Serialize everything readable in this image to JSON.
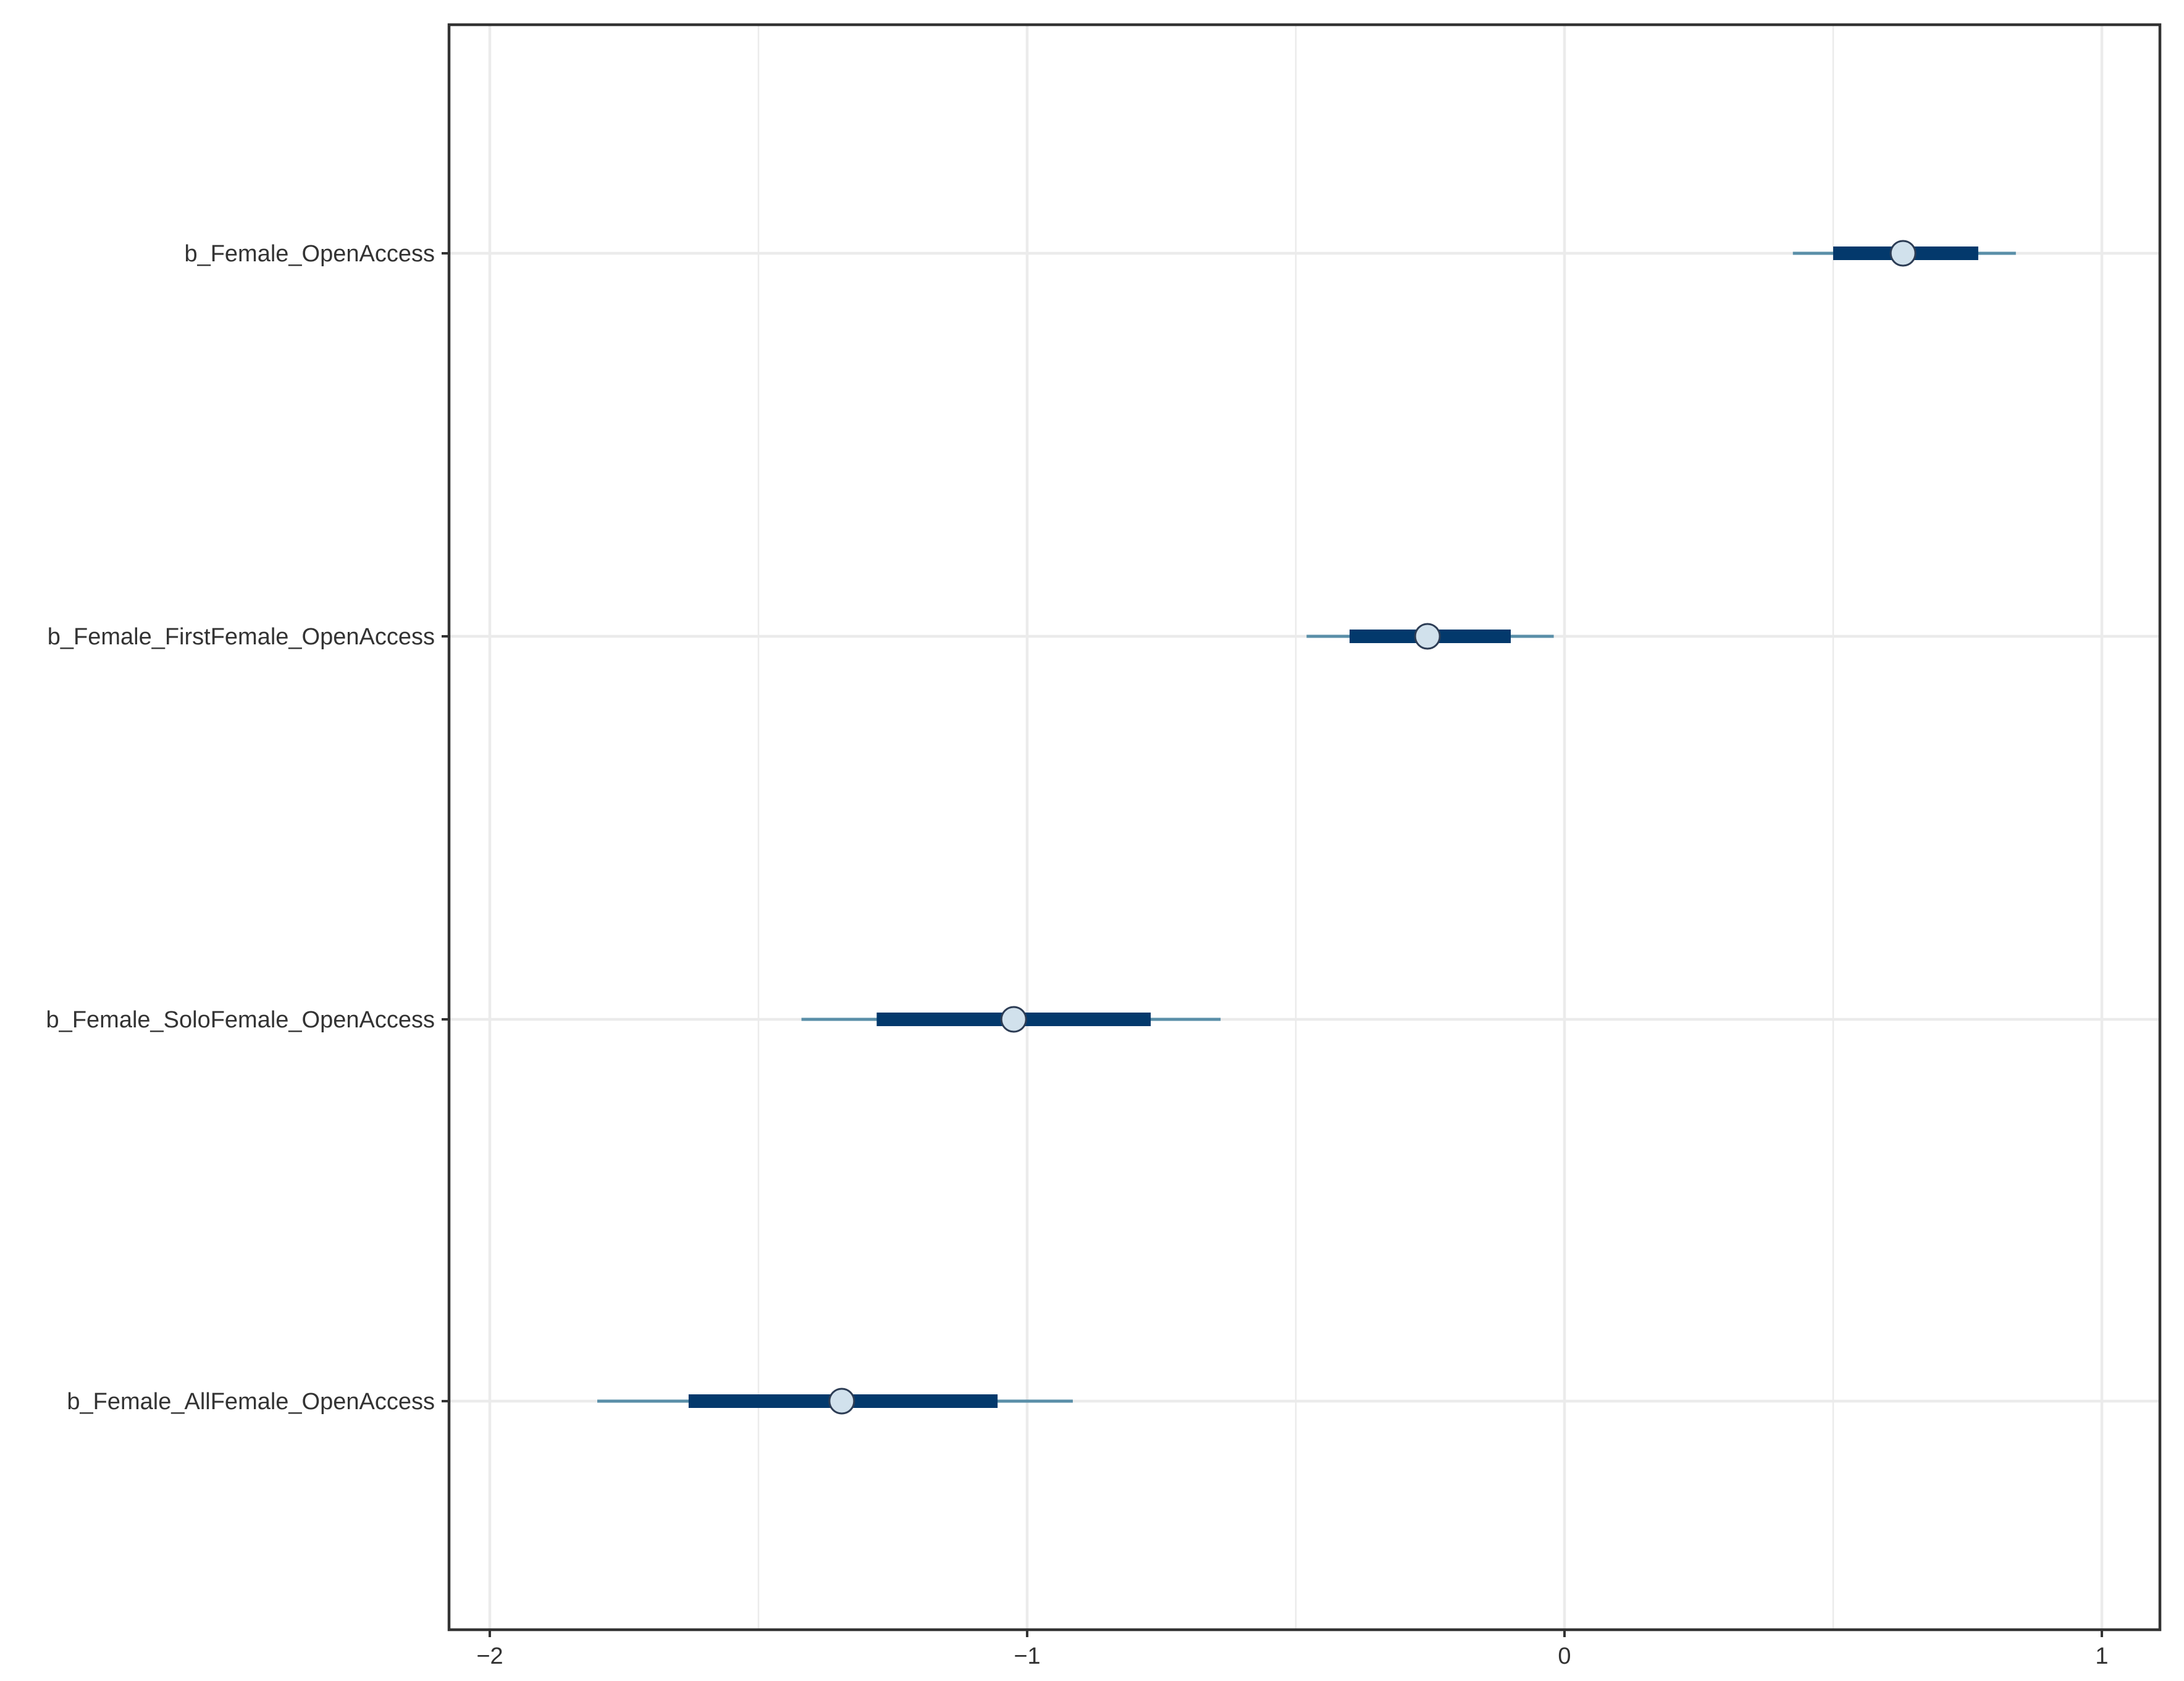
{
  "chart_data": {
    "type": "interval",
    "x_axis": {
      "xlim": [
        -2.08,
        1.1
      ],
      "ticks": [
        -2,
        -1,
        0,
        1
      ],
      "tick_labels": [
        "−2",
        "−1",
        "0",
        "1"
      ],
      "minor_gridlines": [
        -1.5,
        -0.5,
        0.5
      ]
    },
    "grid": true,
    "parameters": [
      {
        "label": "b_Female_OpenAccess",
        "estimate": 0.63,
        "inner": [
          0.5,
          0.77
        ],
        "outer": [
          0.425,
          0.84
        ]
      },
      {
        "label": "b_Female_FirstFemale_OpenAccess",
        "estimate": -0.255,
        "inner": [
          -0.4,
          -0.1
        ],
        "outer": [
          -0.48,
          -0.02
        ]
      },
      {
        "label": "b_Female_SoloFemale_OpenAccess",
        "estimate": -1.025,
        "inner": [
          -1.28,
          -0.77
        ],
        "outer": [
          -1.42,
          -0.64
        ]
      },
      {
        "label": "b_Female_AllFemale_OpenAccess",
        "estimate": -1.345,
        "inner": [
          -1.63,
          -1.055
        ],
        "outer": [
          -1.8,
          -0.915
        ]
      }
    ],
    "colors": {
      "inner_interval": "#03396c",
      "outer_interval": "#5a8fa8",
      "point_fill": "#d1e1ec",
      "point_stroke": "#2d3d55",
      "grid": "#ebebeb",
      "panel_border": "#333333"
    }
  }
}
